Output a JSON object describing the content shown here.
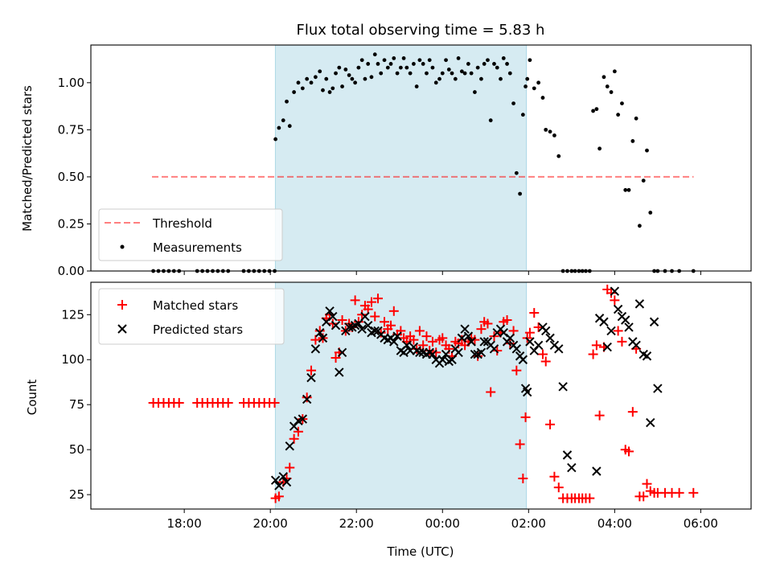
{
  "chart_data": [
    {
      "type": "scatter",
      "title": "Flux total observing time = 5.83 h",
      "xlabel": "",
      "ylabel": "Matched/Predicted stars",
      "x_unit": "hours since 00:00 UTC (17:00 = -7)",
      "xlim": [
        -8.17,
        7.17
      ],
      "ylim": [
        0,
        1.2
      ],
      "yticks": [
        0.0,
        0.25,
        0.5,
        0.75,
        1.0
      ],
      "ytick_labels": [
        "0.00",
        "0.25",
        "0.50",
        "0.75",
        "1.00"
      ],
      "shaded_interval": {
        "start": "20:07",
        "end": "01:57",
        "color": "#add8e6"
      },
      "threshold": {
        "name": "Threshold",
        "value": 0.5,
        "x_start": "17:15",
        "x_end": "05:50",
        "color": "#ff0000"
      },
      "legend": {
        "position": "lower-left",
        "entries": [
          "Threshold",
          "Measurements"
        ]
      },
      "series": [
        {
          "name": "Measurements",
          "color": "#000000",
          "marker": "dot",
          "x": [
            -6.72,
            -6.6,
            -6.48,
            -6.36,
            -6.24,
            -6.12,
            -5.7,
            -5.58,
            -5.46,
            -5.34,
            -5.22,
            -5.1,
            -4.98,
            -4.62,
            -4.5,
            -4.38,
            -4.26,
            -4.14,
            -4.02,
            -3.9,
            -3.88,
            -3.8,
            -3.7,
            -3.62,
            -3.55,
            -3.45,
            -3.35,
            -3.25,
            -3.15,
            -3.05,
            -2.95,
            -2.85,
            -2.78,
            -2.7,
            -2.62,
            -2.55,
            -2.48,
            -2.4,
            -2.33,
            -2.25,
            -2.17,
            -2.1,
            -2.03,
            -1.95,
            -1.87,
            -1.8,
            -1.73,
            -1.65,
            -1.57,
            -1.5,
            -1.43,
            -1.35,
            -1.27,
            -1.2,
            -1.13,
            -1.05,
            -0.97,
            -0.9,
            -0.83,
            -0.75,
            -0.67,
            -0.6,
            -0.53,
            -0.45,
            -0.37,
            -0.3,
            -0.23,
            -0.15,
            -0.07,
            0.0,
            0.08,
            0.15,
            0.22,
            0.3,
            0.37,
            0.45,
            0.52,
            0.6,
            0.67,
            0.75,
            0.82,
            0.9,
            0.97,
            1.05,
            1.12,
            1.2,
            1.27,
            1.35,
            1.42,
            1.5,
            1.57,
            1.65,
            1.72,
            1.8,
            1.87,
            1.93,
            1.97,
            2.03,
            2.13,
            2.23,
            2.33,
            2.4,
            2.5,
            2.6,
            2.7,
            2.8,
            2.9,
            3.0,
            3.08,
            3.17,
            3.25,
            3.33,
            3.42,
            3.5,
            3.58,
            3.65,
            3.75,
            3.83,
            3.92,
            4.0,
            4.08,
            4.17,
            4.25,
            4.33,
            4.42,
            4.5,
            4.58,
            4.67,
            4.75,
            4.83,
            4.92,
            5.0,
            5.17,
            5.33,
            5.5,
            5.83
          ],
          "y": [
            0,
            0,
            0,
            0,
            0,
            0,
            0,
            0,
            0,
            0,
            0,
            0,
            0,
            0,
            0,
            0,
            0,
            0,
            0,
            0,
            0.7,
            0.76,
            0.8,
            0.9,
            0.77,
            0.95,
            1.0,
            0.97,
            1.02,
            1.0,
            1.03,
            1.06,
            0.96,
            1.02,
            0.95,
            0.97,
            1.05,
            1.08,
            0.98,
            1.07,
            1.04,
            1.02,
            1.0,
            1.08,
            1.12,
            1.02,
            1.1,
            1.03,
            1.15,
            1.1,
            1.05,
            1.12,
            1.08,
            1.1,
            1.13,
            1.05,
            1.08,
            1.13,
            1.08,
            1.05,
            1.1,
            0.98,
            1.12,
            1.1,
            1.05,
            1.12,
            1.08,
            1.0,
            1.02,
            1.05,
            1.12,
            1.07,
            1.05,
            1.02,
            1.13,
            1.06,
            1.05,
            1.1,
            1.05,
            0.95,
            1.08,
            1.02,
            1.1,
            1.12,
            0.8,
            1.1,
            1.08,
            1.02,
            1.13,
            1.1,
            1.05,
            0.89,
            0.52,
            0.41,
            0.83,
            0.98,
            1.02,
            1.12,
            0.97,
            1.0,
            0.92,
            0.75,
            0.74,
            0.72,
            0.61,
            0,
            0,
            0,
            0,
            0,
            0,
            0,
            0,
            0.85,
            0.86,
            0.65,
            1.03,
            0.98,
            0.95,
            1.06,
            0.83,
            0.89,
            0.43,
            0.43,
            0.69,
            0.81,
            0.24,
            0.48,
            0.64,
            0.31,
            0,
            0,
            0,
            0,
            0,
            0
          ]
        }
      ]
    },
    {
      "type": "scatter",
      "title": "",
      "xlabel": "Time (UTC)",
      "ylabel": "Count",
      "x_unit": "hours since 00:00 UTC (17:00 = -7)",
      "xlim": [
        -8.17,
        7.17
      ],
      "ylim": [
        17,
        143
      ],
      "yticks": [
        25,
        50,
        75,
        100,
        125
      ],
      "ytick_labels": [
        "25",
        "50",
        "75",
        "100",
        "125"
      ],
      "xticks": [
        -6,
        -4,
        -2,
        0,
        2,
        4,
        6
      ],
      "xtick_labels": [
        "18:00",
        "20:00",
        "22:00",
        "00:00",
        "02:00",
        "04:00",
        "06:00"
      ],
      "shaded_interval": {
        "start": "20:07",
        "end": "01:57",
        "color": "#add8e6"
      },
      "legend": {
        "position": "top-left",
        "entries": [
          "Matched stars",
          "Predicted stars"
        ]
      },
      "series": [
        {
          "name": "Matched stars",
          "color": "#ff0000",
          "marker": "plus",
          "x": [
            -6.72,
            -6.6,
            -6.48,
            -6.36,
            -6.24,
            -6.12,
            -5.7,
            -5.58,
            -5.46,
            -5.34,
            -5.22,
            -5.1,
            -4.98,
            -4.62,
            -4.5,
            -4.38,
            -4.26,
            -4.14,
            -4.02,
            -3.9,
            -3.88,
            -3.8,
            -3.7,
            -3.62,
            -3.55,
            -3.45,
            -3.35,
            -3.25,
            -3.15,
            -3.05,
            -2.95,
            -2.85,
            -2.78,
            -2.7,
            -2.62,
            -2.55,
            -2.48,
            -2.4,
            -2.33,
            -2.25,
            -2.17,
            -2.1,
            -2.03,
            -1.95,
            -1.87,
            -1.8,
            -1.73,
            -1.65,
            -1.57,
            -1.5,
            -1.43,
            -1.35,
            -1.27,
            -1.2,
            -1.13,
            -1.05,
            -0.97,
            -0.9,
            -0.83,
            -0.75,
            -0.67,
            -0.6,
            -0.53,
            -0.45,
            -0.37,
            -0.3,
            -0.23,
            -0.15,
            -0.07,
            0.0,
            0.08,
            0.15,
            0.22,
            0.3,
            0.37,
            0.45,
            0.52,
            0.6,
            0.67,
            0.75,
            0.82,
            0.9,
            0.97,
            1.05,
            1.12,
            1.2,
            1.27,
            1.35,
            1.42,
            1.5,
            1.57,
            1.65,
            1.72,
            1.8,
            1.87,
            1.93,
            1.97,
            2.03,
            2.13,
            2.23,
            2.33,
            2.4,
            2.5,
            2.6,
            2.7,
            2.8,
            2.9,
            3.0,
            3.08,
            3.17,
            3.25,
            3.33,
            3.42,
            3.5,
            3.58,
            3.65,
            3.75,
            3.83,
            3.92,
            4.0,
            4.08,
            4.17,
            4.25,
            4.33,
            4.42,
            4.5,
            4.58,
            4.67,
            4.75,
            4.83,
            4.92,
            5.0,
            5.17,
            5.33,
            5.5,
            5.83
          ],
          "y": [
            76,
            76,
            76,
            76,
            76,
            76,
            76,
            76,
            76,
            76,
            76,
            76,
            76,
            76,
            76,
            76,
            76,
            76,
            76,
            76,
            23,
            24,
            32,
            34,
            40,
            56,
            60,
            67,
            79,
            94,
            111,
            116,
            112,
            123,
            125,
            120,
            101,
            104,
            122,
            116,
            120,
            118,
            133,
            121,
            125,
            130,
            128,
            132,
            124,
            134,
            115,
            121,
            117,
            119,
            127,
            114,
            116,
            112,
            110,
            113,
            111,
            106,
            116,
            108,
            113,
            105,
            110,
            104,
            111,
            112,
            108,
            106,
            102,
            110,
            109,
            111,
            108,
            110,
            112,
            111,
            102,
            117,
            121,
            120,
            82,
            113,
            105,
            115,
            121,
            122,
            109,
            116,
            94,
            53,
            34,
            68,
            112,
            115,
            126,
            118,
            103,
            99,
            64,
            35,
            29,
            23,
            23,
            23,
            23,
            23,
            23,
            23,
            23,
            103,
            108,
            69,
            107,
            139,
            137,
            133,
            116,
            110,
            50,
            49,
            71,
            106,
            24,
            24,
            31,
            27,
            26,
            26,
            26,
            26,
            26,
            26
          ]
        },
        {
          "name": "Predicted stars",
          "color": "#000000",
          "marker": "x",
          "x": [
            -3.88,
            -3.8,
            -3.7,
            -3.62,
            -3.55,
            -3.45,
            -3.35,
            -3.25,
            -3.15,
            -3.05,
            -2.95,
            -2.85,
            -2.78,
            -2.7,
            -2.62,
            -2.55,
            -2.48,
            -2.4,
            -2.33,
            -2.25,
            -2.17,
            -2.1,
            -2.03,
            -1.95,
            -1.87,
            -1.8,
            -1.73,
            -1.65,
            -1.57,
            -1.5,
            -1.43,
            -1.35,
            -1.27,
            -1.2,
            -1.13,
            -1.05,
            -0.97,
            -0.9,
            -0.83,
            -0.75,
            -0.67,
            -0.6,
            -0.53,
            -0.45,
            -0.37,
            -0.3,
            -0.23,
            -0.15,
            -0.07,
            0.0,
            0.08,
            0.15,
            0.22,
            0.3,
            0.37,
            0.45,
            0.52,
            0.6,
            0.67,
            0.75,
            0.82,
            0.9,
            0.97,
            1.05,
            1.12,
            1.2,
            1.27,
            1.35,
            1.42,
            1.5,
            1.57,
            1.65,
            1.72,
            1.8,
            1.87,
            1.93,
            1.97,
            2.03,
            2.13,
            2.23,
            2.33,
            2.4,
            2.5,
            2.6,
            2.7,
            2.8,
            2.9,
            3.0,
            3.58,
            3.65,
            3.75,
            3.83,
            3.92,
            4.0,
            4.08,
            4.17,
            4.25,
            4.33,
            4.42,
            4.5,
            4.58,
            4.67,
            4.75,
            4.83,
            4.92,
            5.0
          ],
          "y": [
            33,
            30,
            35,
            32,
            52,
            63,
            66,
            67,
            78,
            90,
            106,
            115,
            112,
            121,
            127,
            124,
            119,
            93,
            104,
            116,
            118,
            118,
            119,
            120,
            117,
            124,
            119,
            115,
            116,
            116,
            114,
            112,
            111,
            112,
            110,
            113,
            105,
            104,
            108,
            105,
            107,
            105,
            104,
            104,
            103,
            104,
            103,
            100,
            98,
            100,
            103,
            99,
            100,
            106,
            104,
            112,
            117,
            113,
            110,
            103,
            103,
            104,
            110,
            110,
            108,
            106,
            115,
            117,
            115,
            110,
            112,
            108,
            106,
            102,
            100,
            84,
            82,
            110,
            105,
            108,
            118,
            116,
            112,
            108,
            106,
            85,
            47,
            40,
            38,
            123,
            121,
            107,
            116,
            138,
            128,
            124,
            122,
            118,
            110,
            108,
            131,
            103,
            102,
            65,
            121,
            84
          ]
        }
      ]
    }
  ]
}
